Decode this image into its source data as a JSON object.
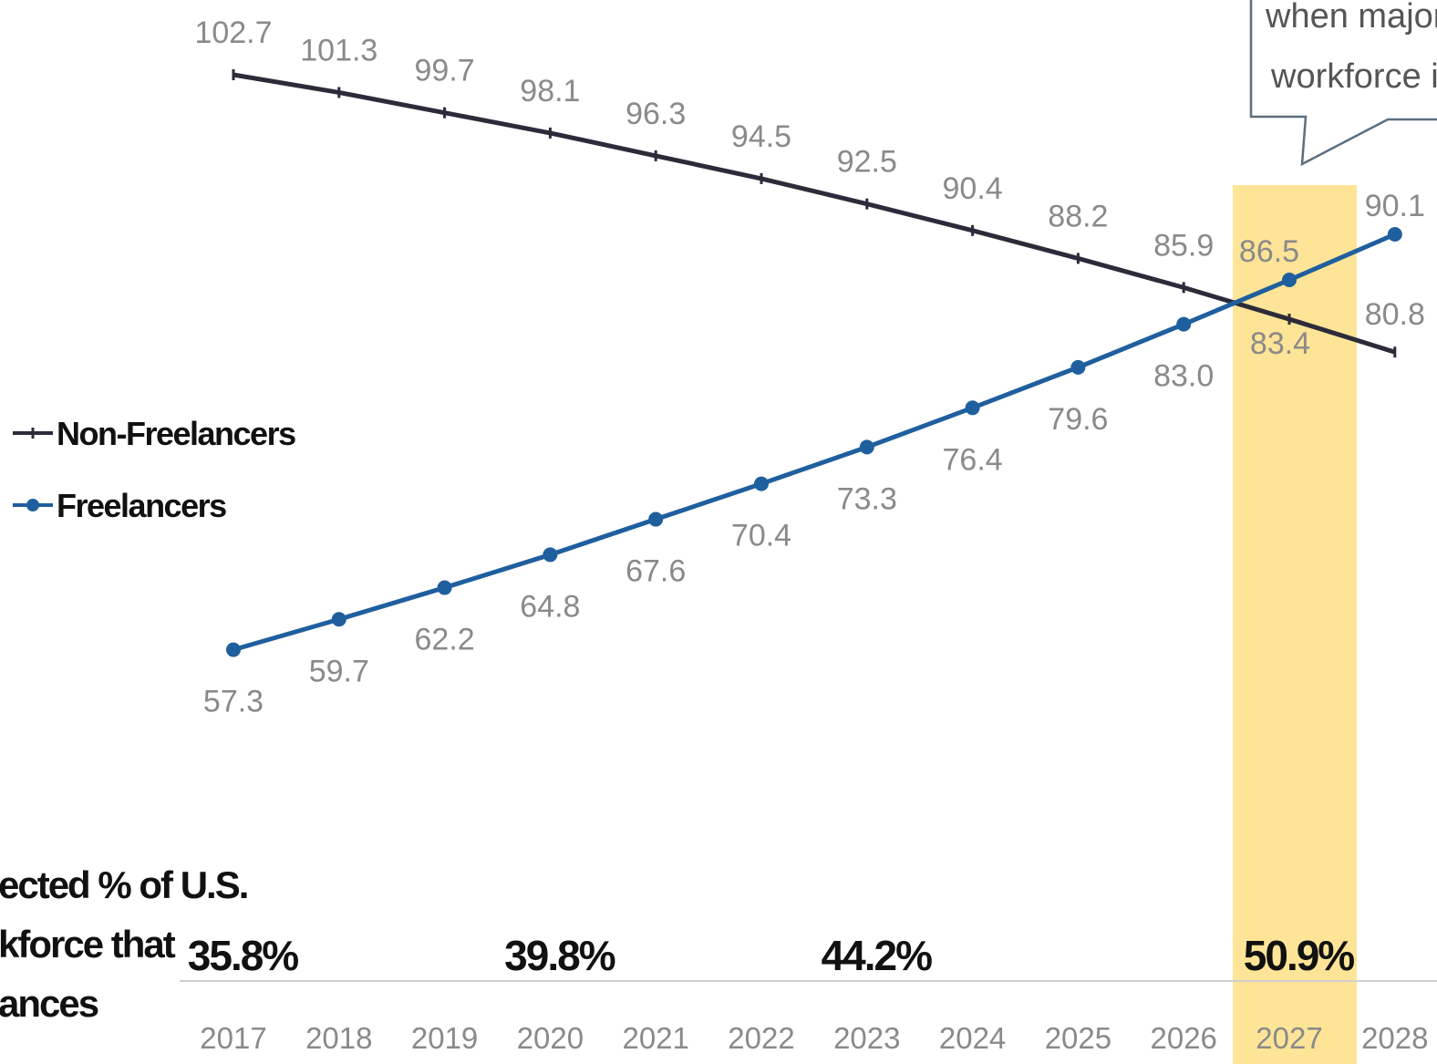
{
  "chart_data": {
    "type": "line",
    "categories": [
      "2017",
      "2018",
      "2019",
      "2020",
      "2021",
      "2022",
      "2023",
      "2024",
      "2025",
      "2026",
      "2027",
      "2028"
    ],
    "series": [
      {
        "name": "Non-Freelancers",
        "color": "#2b2b3a",
        "values": [
          102.7,
          101.3,
          99.7,
          98.1,
          96.3,
          94.5,
          92.5,
          90.4,
          88.2,
          85.9,
          83.4,
          80.8
        ]
      },
      {
        "name": "Freelancers",
        "color": "#1f5f9e",
        "values": [
          57.3,
          59.7,
          62.2,
          64.8,
          67.6,
          70.4,
          73.3,
          76.4,
          79.6,
          83.0,
          86.5,
          90.1
        ]
      }
    ],
    "highlight": {
      "category": "2027",
      "color": "#fde497"
    },
    "callout_lines": [
      "when majori",
      "workforce is"
    ],
    "side_label_lines": [
      "ected % of U.S.",
      "kforce that",
      "ances"
    ],
    "percent_labels": [
      {
        "year": "2017",
        "label": "35.8%"
      },
      {
        "year": "2020",
        "label": "39.8%"
      },
      {
        "year": "2023",
        "label": "44.2%"
      },
      {
        "year": "2027",
        "label": "50.9%"
      }
    ],
    "legend": "left"
  }
}
